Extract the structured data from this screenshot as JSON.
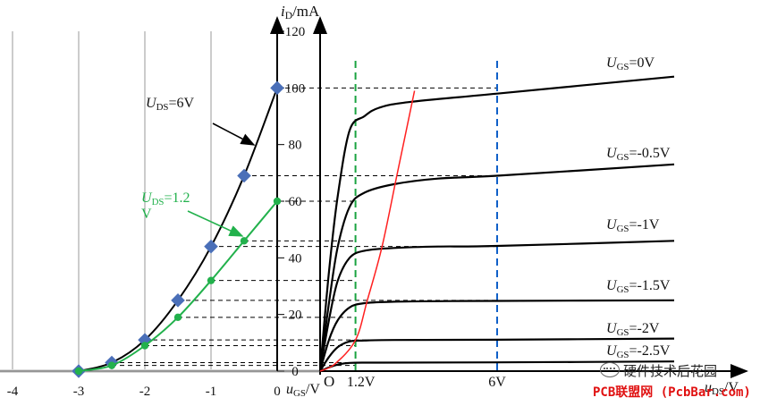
{
  "chart_data": [
    {
      "type": "line",
      "title": "",
      "xlabel": "uGS/V",
      "ylabel": "iD/mA",
      "x_ticks": [
        "-4",
        "-3",
        "-2",
        "-1",
        "0"
      ],
      "y_ticks": [
        "0",
        "20",
        "40",
        "60",
        "80",
        "100",
        "120"
      ],
      "xlim": [
        -4,
        0
      ],
      "ylim": [
        0,
        120
      ],
      "grid": "vertical",
      "series": [
        {
          "name": "UDS=6V",
          "color": "#000000",
          "marker_color": "#4a6fb8",
          "x": [
            -3,
            -2.5,
            -2,
            -1.5,
            -1,
            -0.5,
            0
          ],
          "y": [
            0,
            3,
            11,
            25,
            44,
            69,
            100
          ]
        },
        {
          "name": "UDS=1.2V",
          "color": "#22b14c",
          "marker_color": "#22b14c",
          "x": [
            -3,
            -2.5,
            -2,
            -1.5,
            -1,
            -0.5,
            0
          ],
          "y": [
            0,
            2,
            9,
            19,
            32,
            46,
            60
          ]
        }
      ]
    },
    {
      "type": "line",
      "title": "",
      "xlabel": "uDS/V",
      "origin_label": "O",
      "x_marks": [
        "1.2V",
        "6V"
      ],
      "x_mark_values": [
        1.2,
        6
      ],
      "xlim": [
        0,
        12
      ],
      "series": [
        {
          "name": "UGS=0V",
          "x": [
            0,
            0.3,
            0.6,
            1,
            1.5,
            2,
            3,
            6,
            12
          ],
          "y": [
            0,
            35,
            62,
            85,
            90,
            93,
            95,
            98,
            104
          ]
        },
        {
          "name": "UGS=-0.5V",
          "x": [
            0,
            0.3,
            0.6,
            1,
            1.5,
            2.5,
            4,
            6,
            12
          ],
          "y": [
            0,
            24,
            44,
            58,
            63,
            66,
            68,
            69,
            73
          ]
        },
        {
          "name": "UGS=-1V",
          "x": [
            0,
            0.3,
            0.6,
            1,
            1.5,
            2.5,
            4,
            6,
            12
          ],
          "y": [
            0,
            18,
            32,
            40,
            42.5,
            43.5,
            44,
            44.2,
            46
          ]
        },
        {
          "name": "UGS=-1.5V",
          "x": [
            0,
            0.3,
            0.6,
            1,
            1.5,
            2.5,
            4,
            6,
            12
          ],
          "y": [
            0,
            11,
            18,
            22.5,
            24,
            24.5,
            24.7,
            24.8,
            25
          ]
        },
        {
          "name": "UGS=-2V",
          "x": [
            0,
            0.3,
            0.6,
            1,
            1.5,
            2.5,
            6,
            12
          ],
          "y": [
            0,
            5,
            8.5,
            10.5,
            10.8,
            11,
            11.1,
            11.5
          ]
        },
        {
          "name": "UGS=-2.5V",
          "x": [
            0,
            0.3,
            0.6,
            1,
            2,
            6,
            12
          ],
          "y": [
            0,
            1.3,
            2.3,
            2.9,
            3,
            3.1,
            3.4
          ]
        },
        {
          "name": "boundary",
          "color": "#ff2020",
          "x": [
            0,
            0.5,
            1.2,
            1.6,
            2.1,
            2.6,
            3.2
          ],
          "y": [
            0,
            2.5,
            11,
            25,
            44,
            69,
            99
          ]
        }
      ],
      "label_texts": {
        "UGS=0V": [
          "U",
          "GS",
          "=0V"
        ],
        "UGS=-0.5V": [
          "U",
          "GS",
          "=-0.5V"
        ],
        "UGS=-1V": [
          "U",
          "GS",
          "=-1V"
        ],
        "UGS=-1.5V": [
          "U",
          "GS",
          "=-1.5V"
        ],
        "UGS=-2V": [
          "U",
          "GS",
          "=-2V"
        ],
        "UGS=-2.5V": [
          "U",
          "GS",
          "=-2.5V"
        ]
      }
    }
  ],
  "annotations": {
    "uds6": [
      "U",
      "DS",
      "=6V"
    ],
    "uds12": [
      "U",
      "DS",
      "=1.2"
    ],
    "uds12_cut": "V"
  },
  "axis_label_parts": {
    "id": [
      "i",
      "D",
      "/mA"
    ],
    "ugs": [
      "u",
      "GS",
      "/V"
    ],
    "uds": [
      "u",
      "DS",
      "/V"
    ]
  },
  "watermark": {
    "title": "硬件技术后花园",
    "site": "PCB联盟网 (PcbBar.com)",
    "icon": "wechat-icon"
  }
}
